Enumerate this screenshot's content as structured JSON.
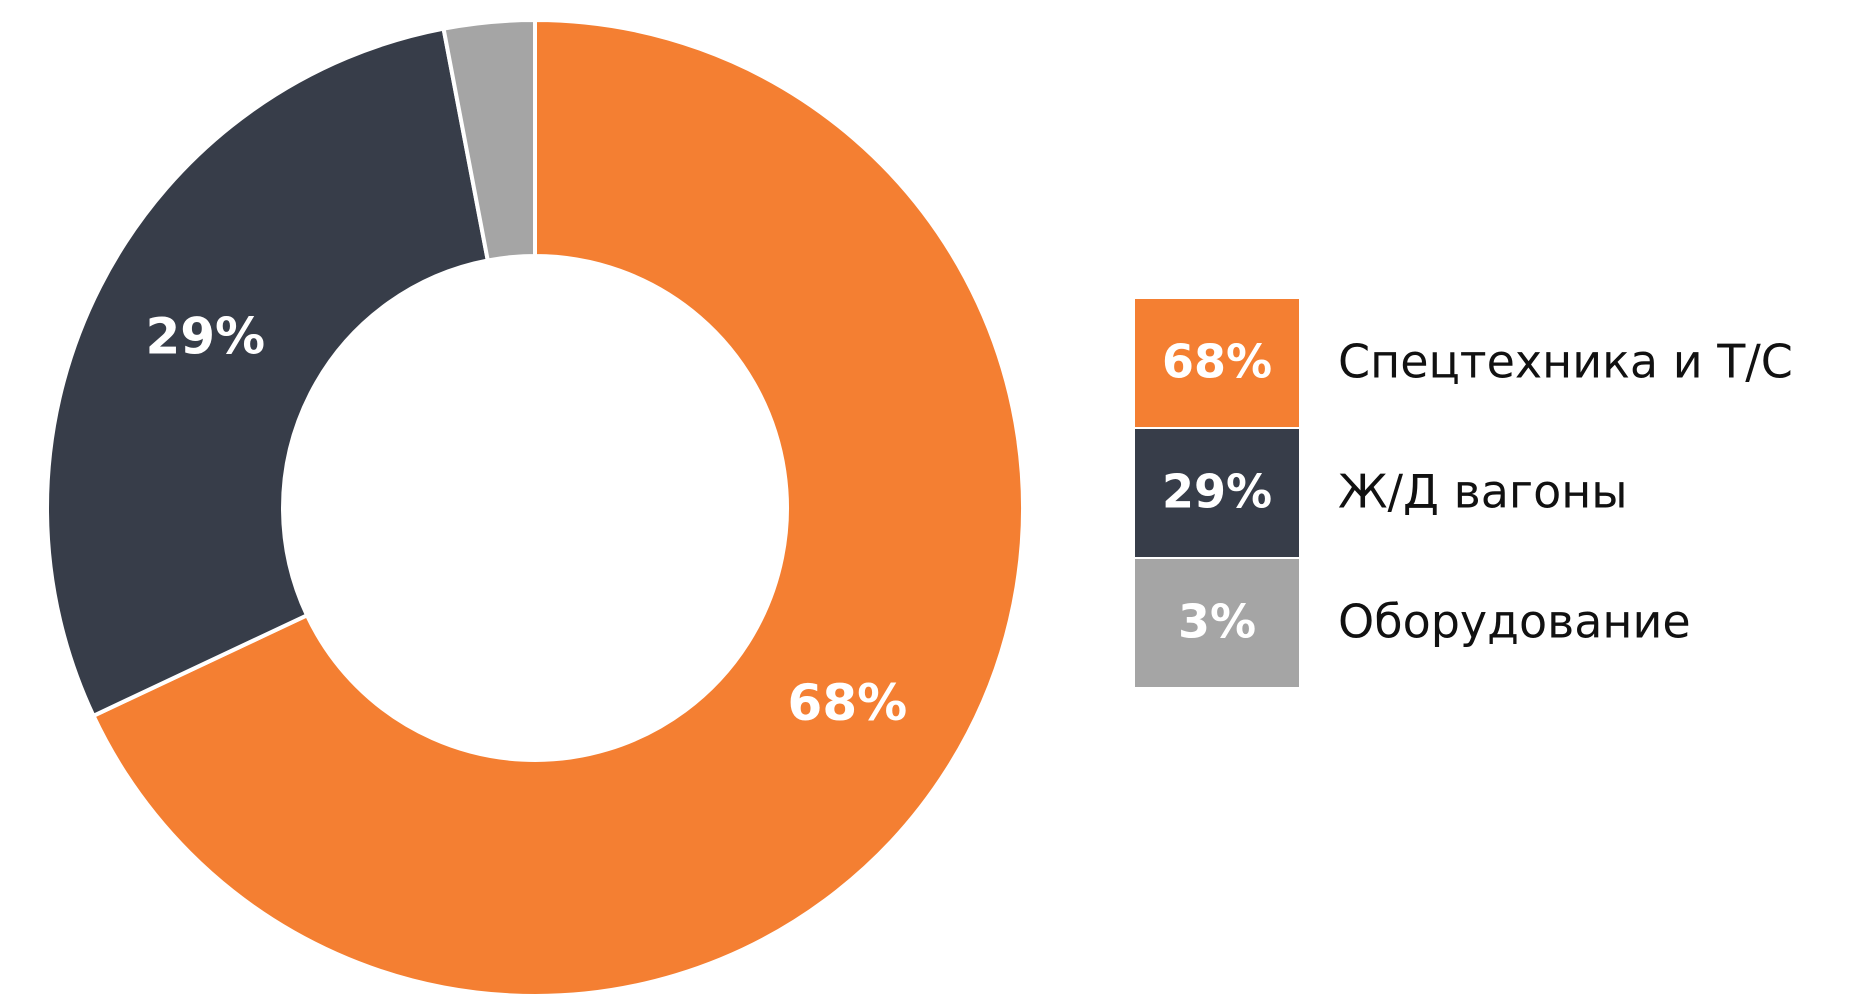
{
  "chart_data": {
    "type": "donut",
    "categories": [
      "Спецтехника и Т/С",
      "Ж/Д вагоны",
      "Оборудование"
    ],
    "values": [
      68,
      29,
      3
    ],
    "value_labels": [
      "68%",
      "29%",
      "3%"
    ],
    "colors": [
      "#f47f32",
      "#373d49",
      "#a5a5a5"
    ],
    "legend": "right"
  }
}
